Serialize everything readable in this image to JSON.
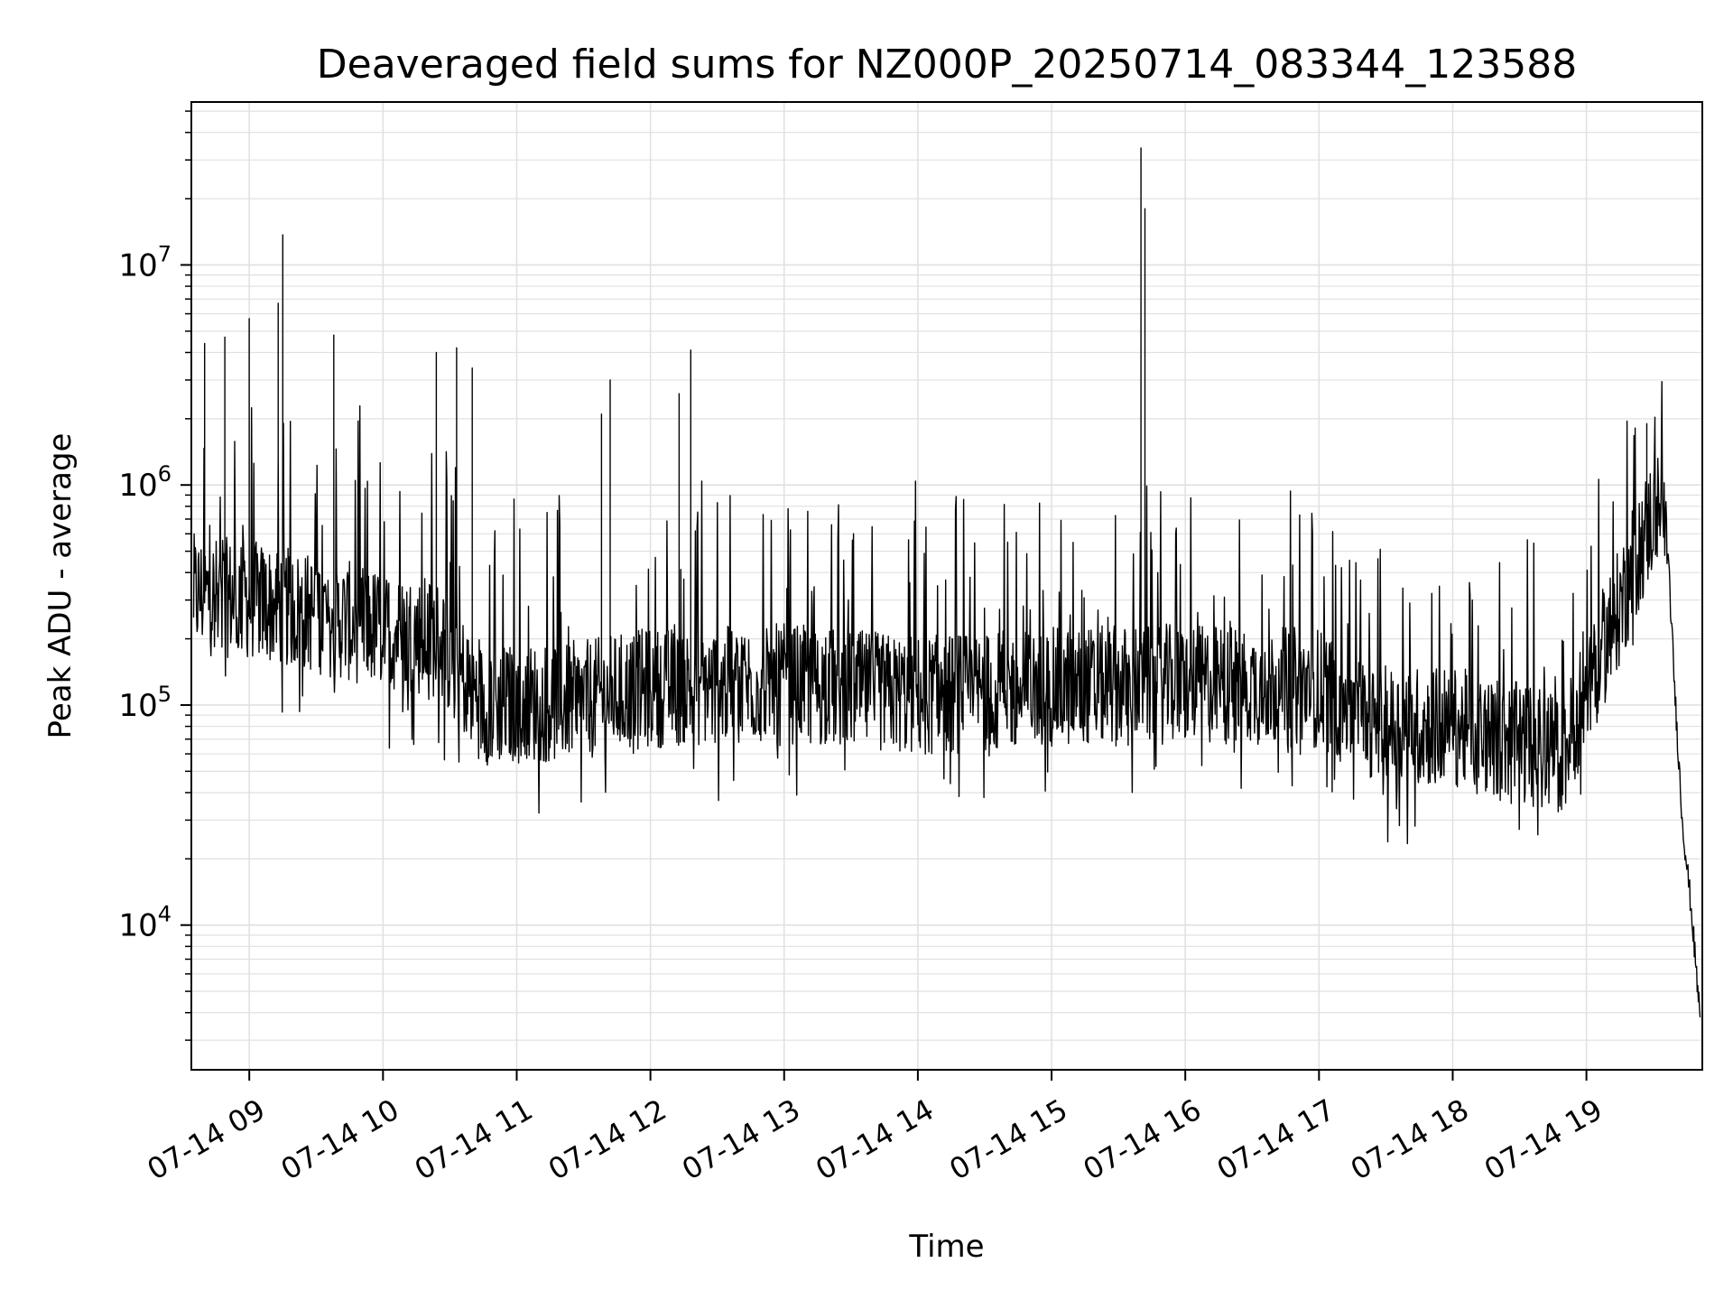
{
  "chart_data": {
    "type": "line",
    "title": "Deaveraged field sums for NZ000P_20250714_083344_123588",
    "xlabel": "Time",
    "ylabel": "Peak ADU - average",
    "yscale": "log",
    "ylim": [
      2200,
      55000000
    ],
    "xlim": [
      "2025-07-14 08:34",
      "2025-07-14 19:52"
    ],
    "grid": true,
    "line_color": "#000000",
    "grid_color": "#e0e0e0",
    "x_ticks": [
      {
        "label": "07-14 09",
        "time": "2025-07-14 09:00"
      },
      {
        "label": "07-14 10",
        "time": "2025-07-14 10:00"
      },
      {
        "label": "07-14 11",
        "time": "2025-07-14 11:00"
      },
      {
        "label": "07-14 12",
        "time": "2025-07-14 12:00"
      },
      {
        "label": "07-14 13",
        "time": "2025-07-14 13:00"
      },
      {
        "label": "07-14 14",
        "time": "2025-07-14 14:00"
      },
      {
        "label": "07-14 15",
        "time": "2025-07-14 15:00"
      },
      {
        "label": "07-14 16",
        "time": "2025-07-14 16:00"
      },
      {
        "label": "07-14 17",
        "time": "2025-07-14 17:00"
      },
      {
        "label": "07-14 18",
        "time": "2025-07-14 18:00"
      },
      {
        "label": "07-14 19",
        "time": "2025-07-14 19:00"
      }
    ],
    "y_ticks": [
      {
        "base": "10",
        "exp": "4",
        "value": 10000
      },
      {
        "base": "10",
        "exp": "5",
        "value": 100000
      },
      {
        "base": "10",
        "exp": "6",
        "value": 1000000
      },
      {
        "base": "10",
        "exp": "7",
        "value": 10000000
      }
    ],
    "baseline": [
      {
        "time": "2025-07-14 08:35",
        "value": 320000
      },
      {
        "time": "2025-07-14 09:00",
        "value": 300000
      },
      {
        "time": "2025-07-14 09:30",
        "value": 260000
      },
      {
        "time": "2025-07-14 10:00",
        "value": 220000
      },
      {
        "time": "2025-07-14 10:25",
        "value": 200000
      },
      {
        "time": "2025-07-14 10:35",
        "value": 140000
      },
      {
        "time": "2025-07-14 10:45",
        "value": 100000
      },
      {
        "time": "2025-07-14 11:30",
        "value": 105000
      },
      {
        "time": "2025-07-14 12:00",
        "value": 120000
      },
      {
        "time": "2025-07-14 13:00",
        "value": 125000
      },
      {
        "time": "2025-07-14 14:00",
        "value": 110000
      },
      {
        "time": "2025-07-14 15:00",
        "value": 120000
      },
      {
        "time": "2025-07-14 16:00",
        "value": 125000
      },
      {
        "time": "2025-07-14 17:00",
        "value": 120000
      },
      {
        "time": "2025-07-14 17:30",
        "value": 80000
      },
      {
        "time": "2025-07-14 18:00",
        "value": 80000
      },
      {
        "time": "2025-07-14 18:50",
        "value": 60000
      },
      {
        "time": "2025-07-14 19:00",
        "value": 120000
      },
      {
        "time": "2025-07-14 19:15",
        "value": 280000
      },
      {
        "time": "2025-07-14 19:25",
        "value": 550000
      },
      {
        "time": "2025-07-14 19:31",
        "value": 780000
      },
      {
        "time": "2025-07-14 19:35",
        "value": 700000
      },
      {
        "time": "2025-07-14 19:37",
        "value": 400000
      },
      {
        "time": "2025-07-14 19:40",
        "value": 100000
      },
      {
        "time": "2025-07-14 19:43",
        "value": 30000
      },
      {
        "time": "2025-07-14 19:47",
        "value": 12000
      },
      {
        "time": "2025-07-14 19:50",
        "value": 5000
      },
      {
        "time": "2025-07-14 19:51",
        "value": 4000
      }
    ],
    "peaks": [
      {
        "time": "2025-07-14 08:40",
        "value": 4400000
      },
      {
        "time": "2025-07-14 08:49",
        "value": 4700000
      },
      {
        "time": "2025-07-14 09:00",
        "value": 5700000
      },
      {
        "time": "2025-07-14 09:13",
        "value": 6700000
      },
      {
        "time": "2025-07-14 09:15",
        "value": 13700000
      },
      {
        "time": "2025-07-14 09:38",
        "value": 4800000
      },
      {
        "time": "2025-07-14 10:24",
        "value": 4000000
      },
      {
        "time": "2025-07-14 10:33",
        "value": 4200000
      },
      {
        "time": "2025-07-14 10:40",
        "value": 3400000
      },
      {
        "time": "2025-07-14 11:42",
        "value": 3000000
      },
      {
        "time": "2025-07-14 11:38",
        "value": 2100000
      },
      {
        "time": "2025-07-14 12:18",
        "value": 4100000
      },
      {
        "time": "2025-07-14 12:13",
        "value": 2600000
      },
      {
        "time": "2025-07-14 15:40",
        "value": 34000000
      },
      {
        "time": "2025-07-14 15:42",
        "value": 18000000
      },
      {
        "time": "2025-07-14 19:27",
        "value": 1900000
      }
    ]
  }
}
